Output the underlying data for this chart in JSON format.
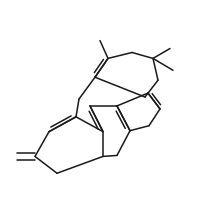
{
  "background_color": "#ffffff",
  "line_color": "#1a1a1a",
  "line_width": 1.1,
  "figsize": [
    1.97,
    1.99
  ],
  "dpi": 100
}
